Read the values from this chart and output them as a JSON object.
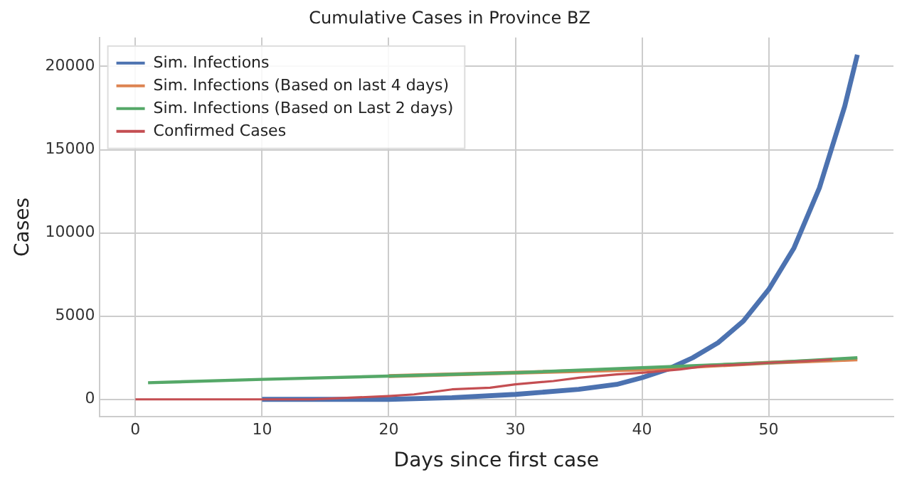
{
  "chart_data": {
    "type": "line",
    "title": "Cumulative Cases in Province BZ",
    "xlabel": "Days since first case",
    "ylabel": "Cases",
    "xlim": [
      -2.85,
      59.85
    ],
    "ylim": [
      -1035,
      21735
    ],
    "xticks": [
      0,
      10,
      20,
      30,
      40,
      50
    ],
    "yticks": [
      0,
      5000,
      10000,
      15000,
      20000
    ],
    "grid": true,
    "legend": "top left",
    "marker": "none",
    "line_style": "solid",
    "series": [
      {
        "name": "Sim. Infections",
        "color": "#4c72b0",
        "x": [
          10,
          15,
          20,
          25,
          30,
          35,
          38,
          40,
          42,
          44,
          46,
          48,
          50,
          52,
          54,
          56,
          57
        ],
        "values": [
          0,
          0,
          0,
          100,
          300,
          600,
          900,
          1300,
          1800,
          2500,
          3400,
          4700,
          6600,
          9100,
          12700,
          17600,
          20700
        ]
      },
      {
        "name": "Sim. Infections (Based on last 4 days)",
        "color": "#dd8452",
        "x": [
          20,
          30,
          40,
          50,
          57
        ],
        "values": [
          1400,
          1600,
          1800,
          2200,
          2400
        ]
      },
      {
        "name": "Sim. Infections (Based on Last 2 days)",
        "color": "#55a868",
        "x": [
          1,
          10,
          20,
          30,
          40,
          50,
          57
        ],
        "values": [
          1000,
          1200,
          1400,
          1600,
          1900,
          2200,
          2500
        ]
      },
      {
        "name": "Confirmed Cases",
        "color": "#c44e52",
        "x": [
          0,
          5,
          10,
          14,
          17,
          20,
          22,
          25,
          28,
          30,
          33,
          35,
          38,
          40,
          43,
          45,
          48,
          50,
          53,
          55
        ],
        "values": [
          0,
          0,
          0,
          0,
          100,
          200,
          300,
          600,
          700,
          900,
          1100,
          1300,
          1500,
          1600,
          1800,
          2000,
          2100,
          2200,
          2300,
          2400
        ]
      }
    ]
  }
}
